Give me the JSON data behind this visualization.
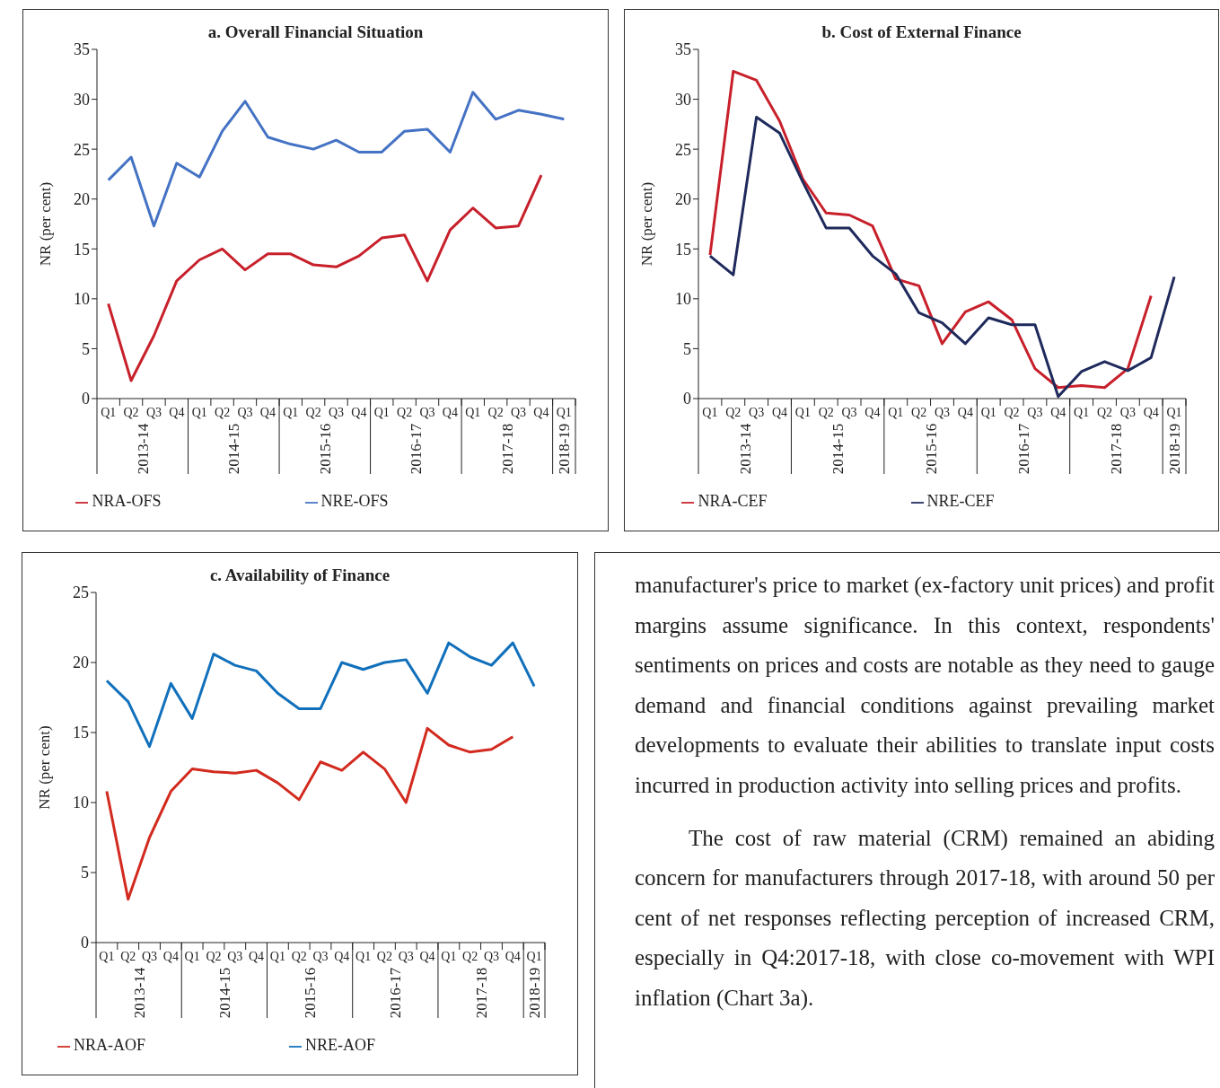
{
  "chart_data": [
    {
      "type": "line",
      "title": "a. Overall Financial Situation",
      "ylabel": "NR (per cent)",
      "categories": [
        "Q1",
        "Q2",
        "Q3",
        "Q4",
        "Q1",
        "Q2",
        "Q3",
        "Q4",
        "Q1",
        "Q2",
        "Q3",
        "Q4",
        "Q1",
        "Q2",
        "Q3",
        "Q4",
        "Q1",
        "Q2",
        "Q3",
        "Q4",
        "Q1"
      ],
      "annotations": [
        "2013-14",
        "2014-15",
        "2015-16",
        "2016-17",
        "2017-18",
        "2018-19"
      ],
      "ylim": [
        0,
        35
      ],
      "yticks": [
        0,
        5,
        10,
        15,
        20,
        25,
        30,
        35
      ],
      "legend": "bottom",
      "marker": "none",
      "line_style": "solid",
      "series": [
        {
          "name": "NRA-OFS",
          "color": "#c8202b",
          "values": [
            9.5,
            1.8,
            6.3,
            11.8,
            13.9,
            15.0,
            12.9,
            14.5,
            14.5,
            13.4,
            13.2,
            14.3,
            16.1,
            16.4,
            11.8,
            16.9,
            19.1,
            17.1,
            17.3,
            22.4,
            null
          ]
        },
        {
          "name": "NRE-OFS",
          "color": "#4472c4",
          "values": [
            21.9,
            24.2,
            17.3,
            23.6,
            22.2,
            26.8,
            29.8,
            26.2,
            25.5,
            25.0,
            25.9,
            24.7,
            24.7,
            26.8,
            27.0,
            24.7,
            30.7,
            28.0,
            28.9,
            28.5,
            28.0
          ]
        }
      ]
    },
    {
      "type": "line",
      "title": "b. Cost of External Finance",
      "ylabel": "NR (per cent)",
      "categories": [
        "Q1",
        "Q2",
        "Q3",
        "Q4",
        "Q1",
        "Q2",
        "Q3",
        "Q4",
        "Q1",
        "Q2",
        "Q3",
        "Q4",
        "Q1",
        "Q2",
        "Q3",
        "Q4",
        "Q1",
        "Q2",
        "Q3",
        "Q4",
        "Q1"
      ],
      "annotations": [
        "2013-14",
        "2014-15",
        "2015-16",
        "2016-17",
        "2017-18",
        "2018-19"
      ],
      "ylim": [
        0,
        35
      ],
      "yticks": [
        0,
        5,
        10,
        15,
        20,
        25,
        30,
        35
      ],
      "legend": "bottom",
      "marker": "none",
      "line_style": "solid",
      "series": [
        {
          "name": "NRA-CEF",
          "color": "#c8202b",
          "values": [
            14.4,
            32.8,
            31.9,
            27.8,
            22.0,
            18.6,
            18.4,
            17.3,
            12.0,
            11.3,
            5.5,
            8.7,
            9.7,
            7.9,
            3.0,
            1.1,
            1.3,
            1.1,
            3.0,
            10.3,
            null
          ]
        },
        {
          "name": "NRE-CEF",
          "color": "#1f2a5c",
          "values": [
            14.3,
            12.4,
            28.2,
            26.6,
            21.7,
            17.1,
            17.1,
            14.3,
            12.5,
            8.6,
            7.6,
            5.5,
            8.1,
            7.4,
            7.4,
            0.2,
            2.7,
            3.7,
            2.8,
            4.1,
            12.2
          ]
        }
      ]
    },
    {
      "type": "line",
      "title": "c. Availability of Finance",
      "ylabel": "NR (per cent)",
      "categories": [
        "Q1",
        "Q2",
        "Q3",
        "Q4",
        "Q1",
        "Q2",
        "Q3",
        "Q4",
        "Q1",
        "Q2",
        "Q3",
        "Q4",
        "Q1",
        "Q2",
        "Q3",
        "Q4",
        "Q1",
        "Q2",
        "Q3",
        "Q4",
        "Q1"
      ],
      "annotations": [
        "2013-14",
        "2014-15",
        "2015-16",
        "2016-17",
        "2017-18",
        "2018-19"
      ],
      "ylim": [
        0,
        25
      ],
      "yticks": [
        0,
        5,
        10,
        15,
        20,
        25
      ],
      "legend": "bottom",
      "marker": "none",
      "line_style": "solid",
      "series": [
        {
          "name": "NRA-AOF",
          "color": "#d22a1e",
          "values": [
            10.8,
            3.1,
            7.5,
            10.8,
            12.4,
            12.2,
            12.1,
            12.3,
            11.4,
            10.2,
            12.9,
            12.3,
            13.6,
            12.4,
            10.0,
            15.3,
            14.1,
            13.6,
            13.8,
            14.7,
            null
          ]
        },
        {
          "name": "NRE-AOF",
          "color": "#1170bb",
          "values": [
            18.7,
            17.2,
            14.0,
            18.5,
            16.0,
            20.6,
            19.8,
            19.4,
            17.8,
            16.7,
            16.7,
            20.0,
            19.5,
            20.0,
            20.2,
            17.8,
            21.4,
            20.4,
            19.8,
            21.4,
            18.3
          ]
        }
      ]
    },
    {
      "type": "other",
      "annotations": [
        "manufacturer's price to market (ex-factory unit prices) and profit margins assume significance. In this context, respondents' sentiments on prices and costs are notable as they need to gauge demand and financial conditions against prevailing market developments to evaluate their abilities to translate input costs incurred in production activity into selling prices and profits.",
        "The cost of raw material (CRM) remained an abiding concern for manufacturers through 2017-18, with around 50 per cent of net responses reflecting perception of increased CRM, especially in Q4:2017-18, with close co-movement with WPI inflation (Chart 3a)."
      ]
    }
  ]
}
